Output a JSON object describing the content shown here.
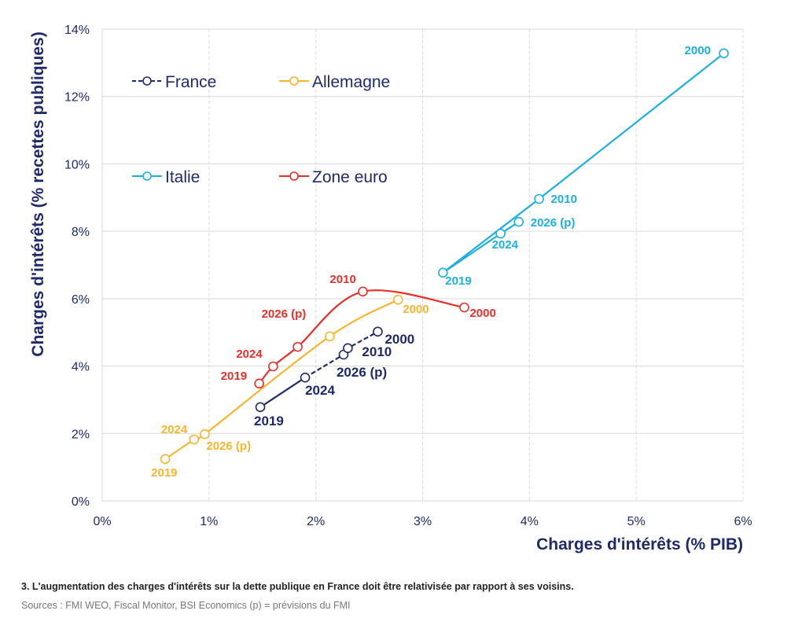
{
  "chart_data": {
    "type": "line",
    "xlabel": "Charges d'intérêts (% PIB)",
    "ylabel": "Charges d'intérêts (% recettes publiques)",
    "xlim": [
      0,
      6
    ],
    "ylim": [
      0,
      14
    ],
    "xticks": [
      "0%",
      "1%",
      "2%",
      "3%",
      "4%",
      "5%",
      "6%"
    ],
    "yticks": [
      "0%",
      "2%",
      "4%",
      "6%",
      "8%",
      "10%",
      "12%",
      "14%"
    ],
    "grid": true,
    "legend_position": "top-left",
    "series": [
      {
        "name": "France",
        "color": "#1f2a6b",
        "style": "solid then dashed",
        "points": [
          {
            "label": "2019",
            "x": 1.48,
            "y": 2.78
          },
          {
            "label": "2024",
            "x": 1.9,
            "y": 3.66
          },
          {
            "label": "2026 (p)",
            "x": 2.26,
            "y": 4.34
          },
          {
            "label": "2010",
            "x": 2.3,
            "y": 4.53
          },
          {
            "label": "2000",
            "x": 2.58,
            "y": 5.02
          }
        ]
      },
      {
        "name": "Allemagne",
        "color": "#f7b52c",
        "style": "smooth",
        "points": [
          {
            "label": "2019",
            "x": 0.59,
            "y": 1.24
          },
          {
            "label": "2024",
            "x": 0.86,
            "y": 1.82
          },
          {
            "label": "2026 (p)",
            "x": 0.96,
            "y": 1.98
          },
          {
            "label": "",
            "x": 2.13,
            "y": 4.88
          },
          {
            "label": "2000",
            "x": 2.77,
            "y": 5.97
          }
        ]
      },
      {
        "name": "Italie",
        "color": "#1ab0e3",
        "style": "solid",
        "points": [
          {
            "label": "2000",
            "x": 5.82,
            "y": 13.28
          },
          {
            "label": "2010",
            "x": 4.09,
            "y": 8.96
          },
          {
            "label": "2019",
            "x": 3.19,
            "y": 6.77
          },
          {
            "label": "2024",
            "x": 3.73,
            "y": 7.93
          },
          {
            "label": "2026 (p)",
            "x": 3.9,
            "y": 8.28
          }
        ]
      },
      {
        "name": "Zone euro",
        "color": "#e8302a",
        "style": "smooth",
        "points": [
          {
            "label": "2019",
            "x": 1.47,
            "y": 3.48
          },
          {
            "label": "2024",
            "x": 1.6,
            "y": 3.99
          },
          {
            "label": "2026 (p)",
            "x": 1.83,
            "y": 4.57
          },
          {
            "label": "2010",
            "x": 2.44,
            "y": 6.21
          },
          {
            "label": "2000",
            "x": 3.39,
            "y": 5.74
          }
        ]
      }
    ]
  },
  "caption": "3. L'augmentation des charges d'intérêts sur la dette publique en France doit être relativisée par rapport à ses voisins.",
  "sources": "Sources : FMI WEO, Fiscal Monitor, BSI Economics (p) = prévisions du FMI"
}
